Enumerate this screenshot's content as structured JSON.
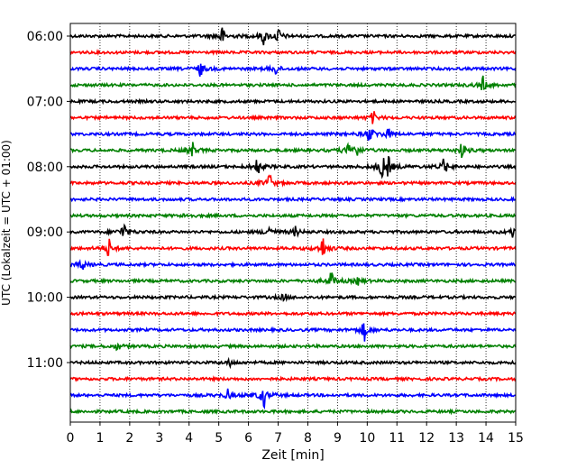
{
  "chart_data": {
    "type": "line",
    "xlabel": "Zeit  [min]",
    "ylabel": "UTC (Lokalzeit = UTC + 01:00)",
    "xlim": [
      0,
      15
    ],
    "x_ticks": [
      0,
      1,
      2,
      3,
      4,
      5,
      6,
      7,
      8,
      9,
      10,
      11,
      12,
      13,
      14,
      15
    ],
    "x_tick_labels": [
      "0",
      "1",
      "2",
      "3",
      "4",
      "5",
      "6",
      "7",
      "8",
      "9",
      "10",
      "11",
      "12",
      "13",
      "14",
      "15"
    ],
    "grid": {
      "x": true,
      "y": false,
      "style": "dotted"
    },
    "y_tick_labels": [
      "06:00",
      "07:00",
      "08:00",
      "09:00",
      "10:00",
      "11:00"
    ],
    "color_cycle": [
      "#000000",
      "#ff0000",
      "#0000ff",
      "#008000"
    ],
    "traces": [
      {
        "hour_utc": "06:00",
        "color": "#000000",
        "events": [
          {
            "t": 5.1,
            "amp": 1.0
          },
          {
            "t": 6.5,
            "amp": 0.8
          },
          {
            "t": 7.0,
            "amp": 0.7
          }
        ]
      },
      {
        "hour_utc": "06:15",
        "color": "#ff0000",
        "events": []
      },
      {
        "hour_utc": "06:30",
        "color": "#0000ff",
        "events": [
          {
            "t": 4.4,
            "amp": 0.8
          },
          {
            "t": 6.9,
            "amp": 0.6
          }
        ]
      },
      {
        "hour_utc": "06:45",
        "color": "#008000",
        "events": [
          {
            "t": 13.9,
            "amp": 0.8
          }
        ]
      },
      {
        "hour_utc": "07:00",
        "color": "#000000",
        "events": []
      },
      {
        "hour_utc": "07:15",
        "color": "#ff0000",
        "events": [
          {
            "t": 10.2,
            "amp": 0.6
          }
        ]
      },
      {
        "hour_utc": "07:30",
        "color": "#0000ff",
        "events": [
          {
            "t": 10.1,
            "amp": 1.0
          },
          {
            "t": 10.7,
            "amp": 0.5
          }
        ]
      },
      {
        "hour_utc": "07:45",
        "color": "#008000",
        "events": [
          {
            "t": 4.1,
            "amp": 0.8
          },
          {
            "t": 9.4,
            "amp": 0.6
          },
          {
            "t": 9.6,
            "amp": 0.9
          },
          {
            "t": 13.2,
            "amp": 0.8
          }
        ]
      },
      {
        "hour_utc": "08:00",
        "color": "#000000",
        "events": [
          {
            "t": 6.3,
            "amp": 0.9
          },
          {
            "t": 10.5,
            "amp": 1.0
          },
          {
            "t": 10.7,
            "amp": 0.9
          },
          {
            "t": 12.6,
            "amp": 0.9
          }
        ]
      },
      {
        "hour_utc": "08:15",
        "color": "#ff0000",
        "events": [
          {
            "t": 6.7,
            "amp": 0.9
          }
        ]
      },
      {
        "hour_utc": "08:30",
        "color": "#0000ff",
        "events": []
      },
      {
        "hour_utc": "08:45",
        "color": "#008000",
        "events": [
          {
            "t": 3.9,
            "amp": 0.3
          }
        ]
      },
      {
        "hour_utc": "09:00",
        "color": "#000000",
        "events": [
          {
            "t": 1.8,
            "amp": 0.9
          },
          {
            "t": 6.7,
            "amp": 0.7
          },
          {
            "t": 7.6,
            "amp": 0.5
          },
          {
            "t": 14.9,
            "amp": 0.5
          }
        ]
      },
      {
        "hour_utc": "09:15",
        "color": "#ff0000",
        "events": [
          {
            "t": 1.3,
            "amp": 0.9
          },
          {
            "t": 8.5,
            "amp": 1.1
          }
        ]
      },
      {
        "hour_utc": "09:30",
        "color": "#0000ff",
        "events": [
          {
            "t": 0.4,
            "amp": 0.6
          }
        ]
      },
      {
        "hour_utc": "09:45",
        "color": "#008000",
        "events": [
          {
            "t": 8.8,
            "amp": 0.9
          },
          {
            "t": 9.7,
            "amp": 0.4
          }
        ]
      },
      {
        "hour_utc": "10:00",
        "color": "#000000",
        "events": [
          {
            "t": 7.2,
            "amp": 0.4
          }
        ]
      },
      {
        "hour_utc": "10:15",
        "color": "#ff0000",
        "events": []
      },
      {
        "hour_utc": "10:30",
        "color": "#0000ff",
        "events": [
          {
            "t": 9.9,
            "amp": 1.0
          }
        ]
      },
      {
        "hour_utc": "10:45",
        "color": "#008000",
        "events": [
          {
            "t": 1.6,
            "amp": 0.4
          }
        ]
      },
      {
        "hour_utc": "11:00",
        "color": "#000000",
        "events": [
          {
            "t": 5.4,
            "amp": 0.4
          }
        ]
      },
      {
        "hour_utc": "11:15",
        "color": "#ff0000",
        "events": []
      },
      {
        "hour_utc": "11:30",
        "color": "#0000ff",
        "events": [
          {
            "t": 5.3,
            "amp": 0.5
          },
          {
            "t": 6.5,
            "amp": 1.3
          }
        ]
      },
      {
        "hour_utc": "11:45",
        "color": "#008000",
        "events": []
      }
    ]
  }
}
